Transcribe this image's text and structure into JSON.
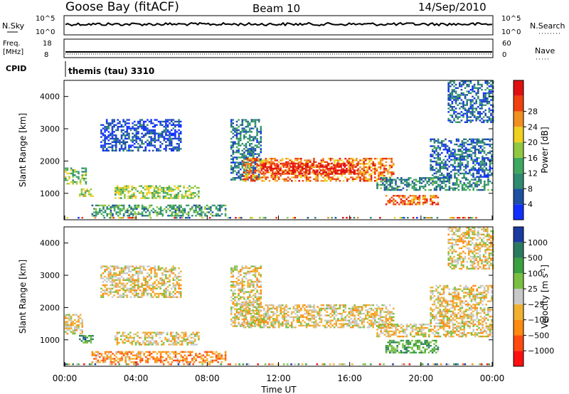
{
  "header": {
    "station": "Goose Bay (fitACF)",
    "beam": "Beam 10",
    "date": "14/Sep/2010"
  },
  "top_panels": {
    "nsky_label": "N.Sky",
    "nsky_ticks": [
      "10^5",
      "10^0"
    ],
    "nsearch_label": "N.Search",
    "nsearch_ticks": [
      "10^5",
      "10^0"
    ],
    "freq_label": "Freq.",
    "freq_unit": "[MHz]",
    "freq_ticks": [
      "18",
      "8"
    ],
    "nave_label": "Nave",
    "nave_ticks": [
      "60",
      "0"
    ],
    "cpid_label": "CPID",
    "cpid_value": "themis (tau) 3310"
  },
  "colors": {
    "power": [
      "#1030ff",
      "#1c50a0",
      "#2f8a70",
      "#3ea860",
      "#90c840",
      "#f0d020",
      "#f09020",
      "#f04010",
      "#e01010"
    ],
    "velocity": [
      "#ff1010",
      "#ff4a10",
      "#ff8a10",
      "#f0b030",
      "#c8c8c8",
      "#7ac040",
      "#3aa040",
      "#2a7a60",
      "#1a3aa0"
    ]
  },
  "chart_data": [
    {
      "type": "heatmap",
      "parameter": "power",
      "xlabel": "",
      "ylabel": "Slant Range [km]",
      "ylim": [
        180,
        4500
      ],
      "xlim": [
        0,
        24
      ],
      "yticks": [
        "1000",
        "2000",
        "3000",
        "4000"
      ],
      "colorbar_label": "Power [dB]",
      "colorbar_ticks": [
        "4",
        "8",
        "12",
        "16",
        "20",
        "24",
        "28"
      ],
      "regions": [
        {
          "t0": 0.0,
          "t1": 1.2,
          "r0": 1300,
          "r1": 1800,
          "level": 0.45
        },
        {
          "t0": 0.8,
          "t1": 1.6,
          "r0": 900,
          "r1": 1150,
          "level": 0.55
        },
        {
          "t0": 2.8,
          "t1": 7.5,
          "r0": 850,
          "r1": 1250,
          "level": 0.5
        },
        {
          "t0": 1.5,
          "t1": 9.0,
          "r0": 300,
          "r1": 650,
          "level": 0.35
        },
        {
          "t0": 2.0,
          "t1": 6.5,
          "r0": 2300,
          "r1": 3300,
          "level": 0.1
        },
        {
          "t0": 9.3,
          "t1": 11.0,
          "r0": 1400,
          "r1": 3300,
          "level": 0.25
        },
        {
          "t0": 10.0,
          "t1": 18.5,
          "r0": 1400,
          "r1": 2100,
          "level": 0.75
        },
        {
          "t0": 11.0,
          "t1": 16.5,
          "r0": 1600,
          "r1": 1950,
          "level": 0.95
        },
        {
          "t0": 18.0,
          "t1": 21.0,
          "r0": 650,
          "r1": 950,
          "level": 0.8
        },
        {
          "t0": 17.5,
          "t1": 24.0,
          "r0": 1100,
          "r1": 1500,
          "level": 0.3
        },
        {
          "t0": 20.5,
          "t1": 24.0,
          "r0": 1500,
          "r1": 2700,
          "level": 0.2
        },
        {
          "t0": 21.5,
          "t1": 24.0,
          "r0": 3200,
          "r1": 4500,
          "level": 0.2
        }
      ]
    },
    {
      "type": "heatmap",
      "parameter": "velocity",
      "xlabel": "Time UT",
      "ylabel": "Slant Range [km]",
      "ylim": [
        180,
        4500
      ],
      "xlim": [
        0,
        24
      ],
      "xticks": [
        "00:00",
        "04:00",
        "08:00",
        "12:00",
        "16:00",
        "20:00",
        "00:00"
      ],
      "yticks": [
        "1000",
        "2000",
        "3000",
        "4000"
      ],
      "colorbar_label": "Velocity [m s",
      "colorbar_label_sup": "-1",
      "colorbar_label_close": "]",
      "colorbar_ticks": [
        "1000",
        "500",
        "100",
        "25",
        "−25",
        "−100",
        "−500",
        "−1000"
      ],
      "regions": [
        {
          "t0": 0.0,
          "t1": 1.0,
          "r0": 1200,
          "r1": 1800,
          "level": 0.45
        },
        {
          "t0": 0.8,
          "t1": 1.6,
          "r0": 900,
          "r1": 1150,
          "level": 0.75
        },
        {
          "t0": 2.8,
          "t1": 7.5,
          "r0": 850,
          "r1": 1250,
          "level": 0.45
        },
        {
          "t0": 1.5,
          "t1": 9.0,
          "r0": 300,
          "r1": 650,
          "level": 0.3
        },
        {
          "t0": 2.0,
          "t1": 6.5,
          "r0": 2300,
          "r1": 3300,
          "level": 0.45
        },
        {
          "t0": 9.3,
          "t1": 11.0,
          "r0": 1400,
          "r1": 3300,
          "level": 0.45
        },
        {
          "t0": 10.0,
          "t1": 18.5,
          "r0": 1400,
          "r1": 2100,
          "level": 0.45
        },
        {
          "t0": 18.0,
          "t1": 21.0,
          "r0": 600,
          "r1": 1000,
          "level": 0.7
        },
        {
          "t0": 17.5,
          "t1": 24.0,
          "r0": 1100,
          "r1": 1500,
          "level": 0.45
        },
        {
          "t0": 20.5,
          "t1": 24.0,
          "r0": 1500,
          "r1": 2700,
          "level": 0.45
        },
        {
          "t0": 21.5,
          "t1": 24.0,
          "r0": 3200,
          "r1": 4500,
          "level": 0.45
        }
      ]
    }
  ]
}
